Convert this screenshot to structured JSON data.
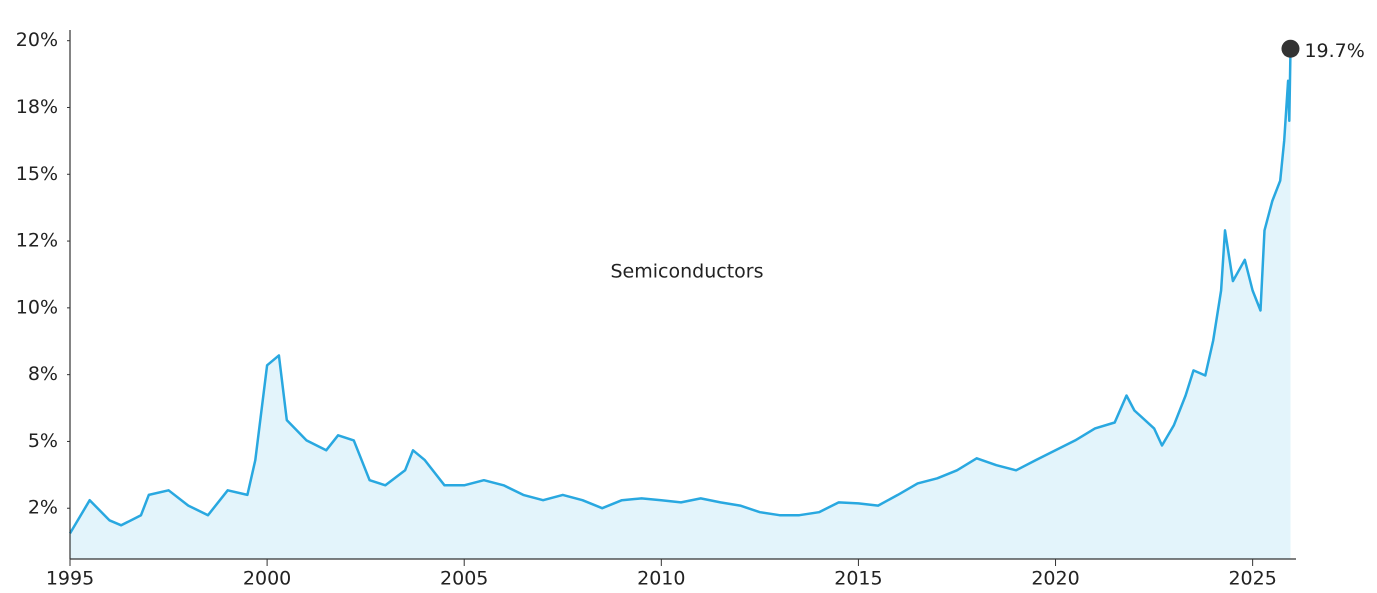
{
  "chart_data": {
    "type": "area",
    "series": [
      {
        "name": "Semiconductors",
        "color": "#29a8e0",
        "fill": "#e3f4fb",
        "x": [
          1995.0,
          1995.5,
          1996.0,
          1996.3,
          1996.8,
          1997.0,
          1997.5,
          1998.0,
          1998.5,
          1999.0,
          1999.5,
          1999.7,
          2000.0,
          2000.3,
          2000.5,
          2001.0,
          2001.5,
          2001.8,
          2002.2,
          2002.6,
          2003.0,
          2003.5,
          2003.7,
          2004.0,
          2004.5,
          2005.0,
          2005.5,
          2006.0,
          2006.5,
          2007.0,
          2007.5,
          2008.0,
          2008.5,
          2009.0,
          2009.5,
          2010.0,
          2010.5,
          2011.0,
          2011.5,
          2012.0,
          2012.5,
          2013.0,
          2013.5,
          2014.0,
          2014.5,
          2015.0,
          2015.5,
          2016.0,
          2016.5,
          2017.0,
          2017.5,
          2018.0,
          2018.5,
          2019.0,
          2019.5,
          2020.0,
          2020.5,
          2021.0,
          2021.5,
          2021.8,
          2022.0,
          2022.5,
          2022.7,
          2023.0,
          2023.3,
          2023.5,
          2023.8,
          2024.0,
          2024.2,
          2024.3,
          2024.5,
          2024.8,
          2025.0,
          2025.2,
          2025.3,
          2025.5,
          2025.7,
          2025.8,
          2025.9,
          2025.93,
          2025.96
        ],
        "values": [
          1.56,
          2.8,
          2.05,
          1.86,
          2.24,
          3.0,
          3.17,
          2.6,
          2.24,
          3.17,
          3.0,
          4.3,
          7.85,
          8.22,
          5.8,
          5.04,
          4.67,
          5.23,
          5.04,
          3.55,
          3.36,
          3.92,
          4.67,
          4.3,
          3.36,
          3.36,
          3.55,
          3.36,
          3.0,
          2.8,
          3.0,
          2.8,
          2.5,
          2.8,
          2.87,
          2.8,
          2.72,
          2.87,
          2.72,
          2.6,
          2.35,
          2.24,
          2.24,
          2.35,
          2.72,
          2.68,
          2.6,
          3.0,
          3.43,
          3.62,
          3.92,
          4.37,
          4.11,
          3.92,
          4.3,
          4.67,
          5.04,
          5.49,
          5.71,
          6.72,
          6.16,
          5.49,
          4.85,
          5.6,
          6.72,
          7.66,
          7.47,
          8.78,
          10.65,
          12.9,
          11.0,
          11.8,
          10.65,
          9.9,
          12.9,
          14.0,
          14.76,
          16.26,
          18.5,
          17.0,
          19.7
        ]
      }
    ],
    "annotations": [
      {
        "x": 2025.96,
        "y": 19.7,
        "label": "19.7%",
        "color": "#333333"
      }
    ],
    "xlim": [
      1995,
      2026.1
    ],
    "xticks": [
      1995,
      2000,
      2005,
      2010,
      2015,
      2020,
      2025
    ],
    "ylim": [
      0.6,
      20.4
    ],
    "yticks": [
      {
        "value": 2.5,
        "label": "2%"
      },
      {
        "value": 5,
        "label": "5%"
      },
      {
        "value": 7.5,
        "label": "8%"
      },
      {
        "value": 10,
        "label": "10%"
      },
      {
        "value": 12.5,
        "label": "12%"
      },
      {
        "value": 15,
        "label": "15%"
      },
      {
        "value": 17.5,
        "label": "18%"
      },
      {
        "value": 20,
        "label": "20%"
      }
    ],
    "grid": false
  }
}
